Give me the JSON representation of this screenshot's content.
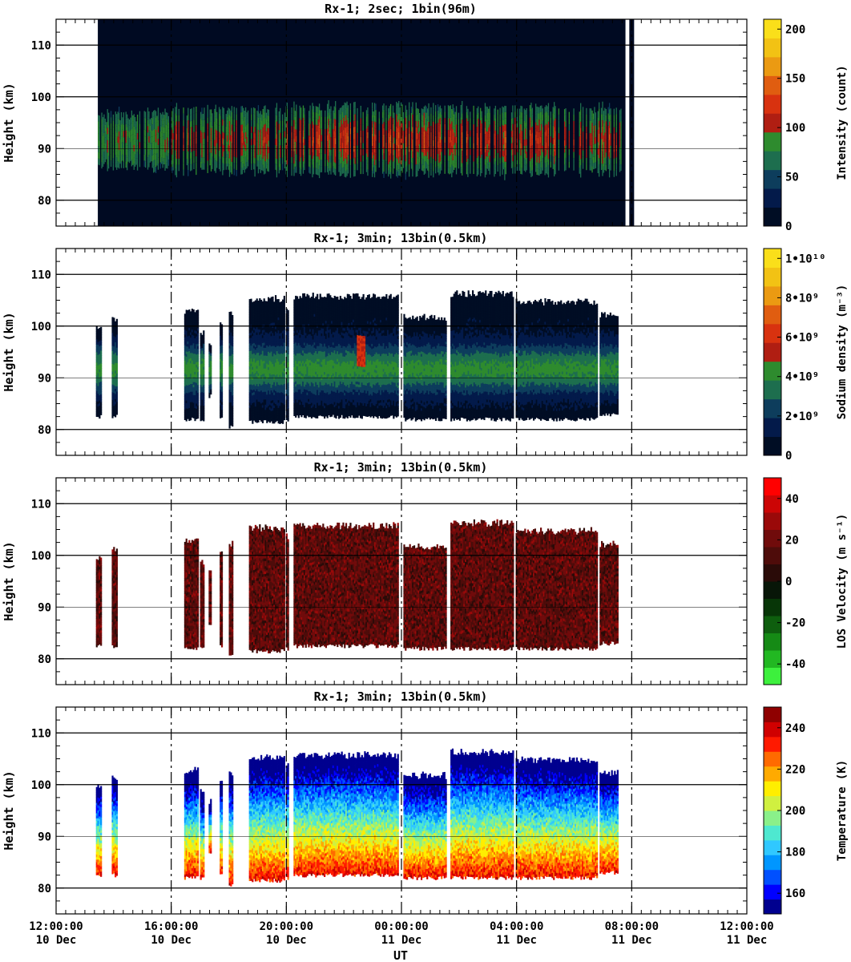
{
  "figure": {
    "x_axis_label": "UT"
  },
  "x_ticks": [
    {
      "time": "12:00:00",
      "date": "10 Dec"
    },
    {
      "time": "16:00:00",
      "date": "10 Dec"
    },
    {
      "time": "20:00:00",
      "date": "10 Dec"
    },
    {
      "time": "00:00:00",
      "date": "11 Dec"
    },
    {
      "time": "04:00:00",
      "date": "11 Dec"
    },
    {
      "time": "08:00:00",
      "date": "11 Dec"
    },
    {
      "time": "12:00:00",
      "date": "11 Dec"
    }
  ],
  "chart_data": [
    {
      "type": "heatmap",
      "title": "Rx-1;  2sec; 1bin(96m)",
      "ylabel": "Height (km)",
      "ylim": [
        75,
        115
      ],
      "yticks": [
        80,
        90,
        100,
        110
      ],
      "xlim": [
        "2023-12-10T12:00",
        "2023-12-11T12:00"
      ],
      "colorbar": {
        "label": "Intensity (count)",
        "ticks": [
          {
            "label": "0",
            "value": 0
          },
          {
            "label": "50",
            "value": 50
          },
          {
            "label": "100",
            "value": 100
          },
          {
            "label": "150",
            "value": 150
          },
          {
            "label": "200",
            "value": 200
          }
        ],
        "range": [
          0,
          210
        ],
        "colors": [
          "#000d24",
          "#031a4a",
          "#0d3d5c",
          "#1d6e4e",
          "#2e8b2e",
          "#b01e12",
          "#d8320f",
          "#e05d10",
          "#eb9a12",
          "#f2c214",
          "#fadf1a"
        ]
      },
      "coverage": {
        "start": "13:27",
        "end": "07:47",
        "extra_bar": "08:00",
        "layer_base_km": 82,
        "layer_top_km": 101
      }
    },
    {
      "type": "heatmap",
      "title": "Rx-1; 3min; 13bin(0.5km)",
      "ylabel": "Height (km)",
      "ylim": [
        75,
        115
      ],
      "yticks": [
        80,
        90,
        100,
        110
      ],
      "xlim": [
        "2023-12-10T12:00",
        "2023-12-11T12:00"
      ],
      "colorbar": {
        "label": "Sodium density (m⁻³)",
        "ticks": [
          {
            "label": "0",
            "value": 0
          },
          {
            "label": "2•10⁹",
            "value": 2
          },
          {
            "label": "4•10⁹",
            "value": 4
          },
          {
            "label": "6•10⁹",
            "value": 6
          },
          {
            "label": "8•10⁹",
            "value": 8
          },
          {
            "label": "1•10¹⁰",
            "value": 10
          }
        ],
        "range": [
          0,
          10.5
        ],
        "colors": [
          "#000d24",
          "#031a4a",
          "#0d3d5c",
          "#1d6e4e",
          "#2e8b2e",
          "#b01e12",
          "#d8320f",
          "#e05d10",
          "#eb9a12",
          "#f2c214",
          "#fadf1a"
        ]
      }
    },
    {
      "type": "heatmap",
      "title": "Rx-1; 3min; 13bin(0.5km)",
      "ylabel": "Height (km)",
      "ylim": [
        75,
        115
      ],
      "yticks": [
        80,
        90,
        100,
        110
      ],
      "xlim": [
        "2023-12-10T12:00",
        "2023-12-11T12:00"
      ],
      "colorbar": {
        "label": "LOS Velocity (m s⁻¹)",
        "ticks": [
          {
            "label": "-40",
            "value": -40
          },
          {
            "label": "-20",
            "value": -20
          },
          {
            "label": "0",
            "value": 0
          },
          {
            "label": "20",
            "value": 20
          },
          {
            "label": "40",
            "value": 40
          }
        ],
        "range": [
          -50,
          50
        ],
        "colors": [
          "#3df03d",
          "#22b822",
          "#158a15",
          "#0e5e0e",
          "#073607",
          "#081608",
          "#2a0b08",
          "#4e0c0a",
          "#700b0b",
          "#9a0909",
          "#cc0505",
          "#ff0000"
        ]
      }
    },
    {
      "type": "heatmap",
      "title": "Rx-1; 3min; 13bin(0.5km)",
      "ylabel": "Height (km)",
      "ylim": [
        75,
        115
      ],
      "yticks": [
        80,
        90,
        100,
        110
      ],
      "xlim": [
        "2023-12-10T12:00",
        "2023-12-11T12:00"
      ],
      "colorbar": {
        "label": "Temperature (K)",
        "ticks": [
          {
            "label": "160",
            "value": 160
          },
          {
            "label": "180",
            "value": 180
          },
          {
            "label": "200",
            "value": 200
          },
          {
            "label": "220",
            "value": 220
          },
          {
            "label": "240",
            "value": 240
          }
        ],
        "range": [
          150,
          250
        ],
        "colors": [
          "#00008f",
          "#0000ff",
          "#0050ff",
          "#0096ff",
          "#30c8ff",
          "#4ee8d0",
          "#8af08a",
          "#d0f040",
          "#ffee00",
          "#ffaa00",
          "#ff6a00",
          "#ff1a00",
          "#d00000",
          "#8f0000"
        ]
      }
    }
  ],
  "data_segments": {
    "panel2_to_4": [
      {
        "start": "13:23",
        "end": "13:32",
        "low": 82.5,
        "high": 99.5
      },
      {
        "start": "13:56",
        "end": "14:05",
        "low": 82.5,
        "high": 101
      },
      {
        "start": "16:27",
        "end": "16:55",
        "low": 82,
        "high": 102.5
      },
      {
        "start": "17:00",
        "end": "17:07",
        "low": 82,
        "high": 98.5
      },
      {
        "start": "17:18",
        "end": "17:22",
        "low": 86.5,
        "high": 96.5
      },
      {
        "start": "17:41",
        "end": "17:46",
        "low": 82.5,
        "high": 100.5
      },
      {
        "start": "18:00",
        "end": "18:07",
        "low": 80.5,
        "high": 102
      },
      {
        "start": "18:42",
        "end": "19:55",
        "low": 81.5,
        "high": 105
      },
      {
        "start": "19:59",
        "end": "20:04",
        "low": 82,
        "high": 103.5
      },
      {
        "start": "20:15",
        "end": "23:54",
        "low": 82.5,
        "high": 105.5
      },
      {
        "start": "00:04",
        "end": "01:34",
        "low": 82,
        "high": 101.5
      },
      {
        "start": "01:42",
        "end": "03:52",
        "low": 82,
        "high": 106
      },
      {
        "start": "03:58",
        "end": "06:47",
        "low": 82,
        "high": 104.5
      },
      {
        "start": "06:53",
        "end": "07:32",
        "low": 83,
        "high": 102
      }
    ]
  }
}
